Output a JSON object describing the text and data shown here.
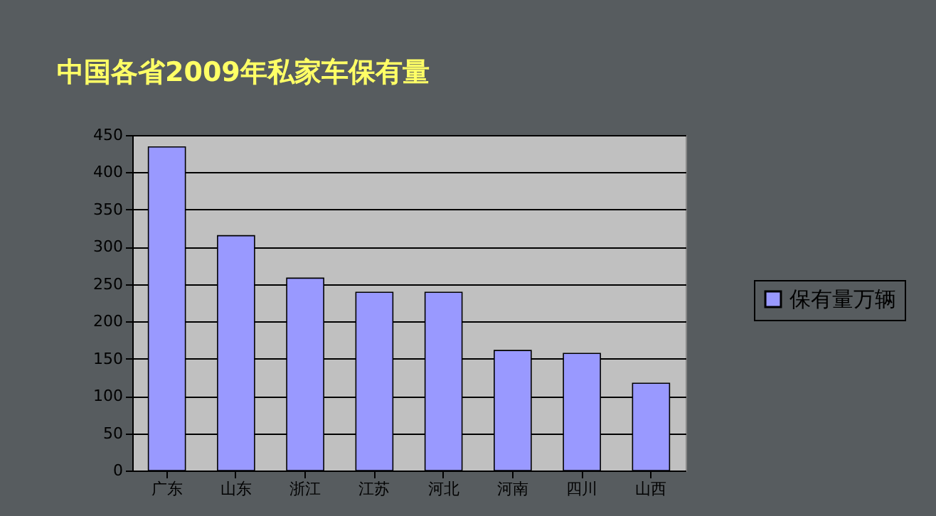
{
  "chart_data": {
    "type": "bar",
    "title": "中国各省2009年私家车保有量",
    "categories": [
      "广东",
      "山东",
      "浙江",
      "江苏",
      "河北",
      "河南",
      "四川",
      "山西"
    ],
    "series": [
      {
        "name": "保有量万辆",
        "color": "#9999ff",
        "values": [
          434,
          315,
          258,
          239,
          239,
          161,
          157,
          117
        ]
      }
    ],
    "ylim": [
      0,
      450
    ],
    "yticks": [
      0,
      50,
      100,
      150,
      200,
      250,
      300,
      350,
      400,
      450
    ],
    "grid": "y",
    "legend": "right"
  }
}
